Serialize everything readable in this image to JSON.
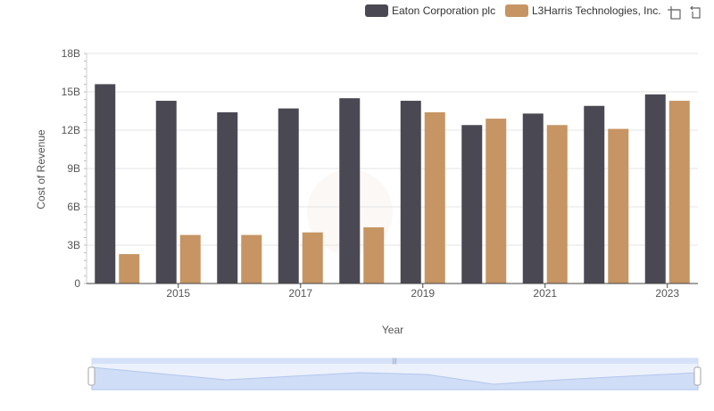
{
  "chart_data": {
    "type": "bar",
    "categories": [
      "2014",
      "2015",
      "2016",
      "2017",
      "2018",
      "2019",
      "2020",
      "2021",
      "2022",
      "2023"
    ],
    "x_tick_labels": [
      "2015",
      "2017",
      "2019",
      "2021",
      "2023"
    ],
    "series": [
      {
        "name": "Eaton Corporation plc",
        "color": "#4a4953",
        "values": [
          15.6,
          14.3,
          13.4,
          13.7,
          14.5,
          14.3,
          12.4,
          13.3,
          13.9,
          14.8
        ]
      },
      {
        "name": "L3Harris Technologies, Inc.",
        "color": "#c69563",
        "values": [
          2.3,
          3.8,
          3.8,
          4.0,
          4.4,
          13.4,
          12.9,
          12.4,
          12.1,
          14.3
        ]
      }
    ],
    "xlabel": "Year",
    "ylabel": "Cost of Revenue",
    "ylim": [
      0,
      18
    ],
    "y_ticks": [
      {
        "value": 0,
        "label": "0"
      },
      {
        "value": 3,
        "label": "3B"
      },
      {
        "value": 6,
        "label": "6B"
      },
      {
        "value": 9,
        "label": "9B"
      },
      {
        "value": 12,
        "label": "12B"
      },
      {
        "value": 15,
        "label": "15B"
      },
      {
        "value": 18,
        "label": "18B"
      }
    ],
    "grid": true,
    "legend_position": "top-right"
  },
  "toolbar": {
    "icons": [
      "zoom-icon",
      "reset-zoom-icon"
    ]
  },
  "slider": {
    "range_start": 0,
    "range_end": 1,
    "fill_color": "#d5e1f7"
  }
}
